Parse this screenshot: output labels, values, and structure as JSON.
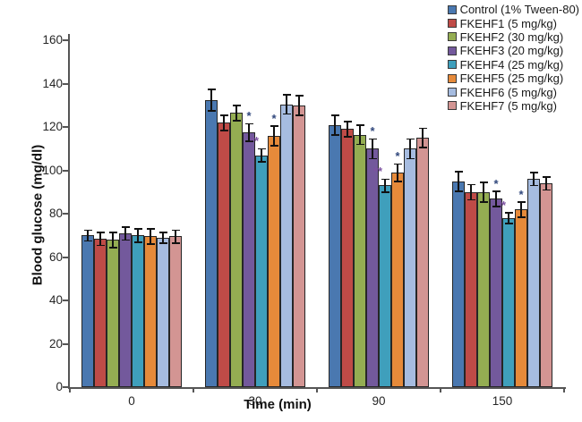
{
  "chart_data": {
    "type": "bar",
    "title": "",
    "xlabel": "Time (min)",
    "ylabel": "Blood glucose (mg/dl)",
    "ylim": [
      0,
      160
    ],
    "yticks": [
      0,
      20,
      40,
      60,
      80,
      100,
      120,
      140,
      160
    ],
    "grid": false,
    "legend_position": "top-right",
    "categories": [
      "0",
      "30",
      "90",
      "150"
    ],
    "series": [
      {
        "name": "Control (1% Tween-80)",
        "color": "#4a78b0",
        "values": [
          70,
          132.5,
          121,
          95
        ],
        "errors": [
          2.5,
          5,
          4.5,
          4.5
        ],
        "significance": [
          "",
          "",
          "",
          ""
        ]
      },
      {
        "name": "FKEHF1 (5 mg/kg)",
        "color": "#bf4b47",
        "values": [
          68.5,
          122,
          119,
          90
        ],
        "errors": [
          3,
          3.5,
          3.5,
          3.5
        ],
        "significance": [
          "",
          "",
          "",
          ""
        ]
      },
      {
        "name": "FKEHF2 (30 mg/kg)",
        "color": "#94ad52",
        "values": [
          68,
          126.5,
          116.5,
          90
        ],
        "errors": [
          3.5,
          3.5,
          4.5,
          4.5
        ],
        "significance": [
          "",
          "",
          "",
          ""
        ]
      },
      {
        "name": "FKEHF3 (20 mg/kg)",
        "color": "#73599c",
        "values": [
          71,
          117.5,
          110,
          87
        ],
        "errors": [
          3,
          4,
          4.5,
          3.5
        ],
        "significance": [
          "",
          "*",
          "*",
          "*"
        ]
      },
      {
        "name": "FKEHF4 (25 mg/kg)",
        "color": "#3f9fbc",
        "values": [
          70,
          107,
          93,
          78
        ],
        "errors": [
          3,
          3,
          3,
          2.5
        ],
        "significance": [
          "",
          "**",
          "**",
          "**"
        ]
      },
      {
        "name": "FKEHF5 (25 mg/kg)",
        "color": "#e68a3a",
        "values": [
          69.5,
          116,
          99,
          82
        ],
        "errors": [
          3.5,
          4.5,
          4,
          3.5
        ],
        "significance": [
          "",
          "*",
          "*",
          "*"
        ]
      },
      {
        "name": "FKEHF6 (5 mg/kg)",
        "color": "#a6bce0",
        "values": [
          69,
          130.5,
          110,
          96
        ],
        "errors": [
          2.5,
          4.5,
          4.5,
          3
        ],
        "significance": [
          "",
          "",
          "",
          ""
        ]
      },
      {
        "name": "FKEHF7 (5 mg/kg)",
        "color": "#d39593",
        "values": [
          69.5,
          130,
          115,
          94
        ],
        "errors": [
          3,
          4.5,
          4.5,
          3
        ],
        "significance": [
          "",
          "",
          "",
          ""
        ]
      }
    ],
    "significance_colors": {
      "*": "#30477c",
      "**": "#7d52a1"
    },
    "error_bar_color": "#111111",
    "axis_color": "#555555"
  }
}
